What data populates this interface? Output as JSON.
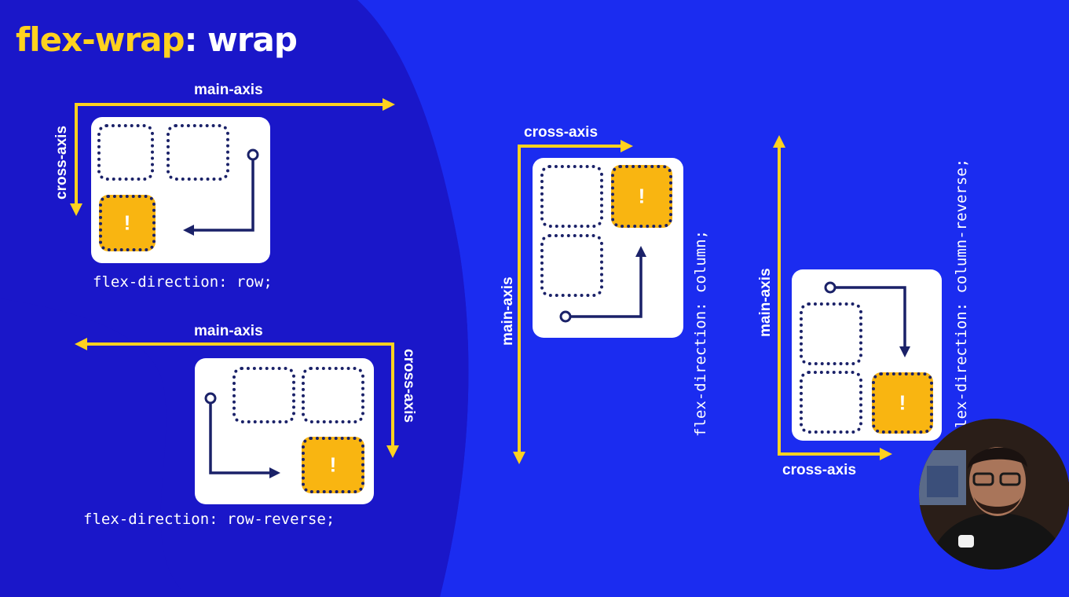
{
  "title": {
    "keyword": "flex-wrap",
    "separator": ": ",
    "value": "wrap"
  },
  "diagrams": {
    "row": {
      "main_axis": "main-axis",
      "cross_axis": "cross-axis",
      "code": "flex-direction: row;",
      "marker": "!"
    },
    "row_reverse": {
      "main_axis": "main-axis",
      "cross_axis": "cross-axis",
      "code": "flex-direction: row-reverse;",
      "marker": "!"
    },
    "column": {
      "main_axis": "main-axis",
      "cross_axis": "cross-axis",
      "code": "flex-direction: column;",
      "marker": "!"
    },
    "column_reverse": {
      "main_axis": "main-axis",
      "cross_axis": "cross-axis",
      "code": "lex-direction: column-reverse;",
      "marker": "!"
    }
  },
  "colors": {
    "background": "#1b2cf0",
    "blob": "#1a17c9",
    "accent_yellow": "#ffd21f",
    "item_yellow": "#f9b511",
    "dots_navy": "#1a2168"
  }
}
